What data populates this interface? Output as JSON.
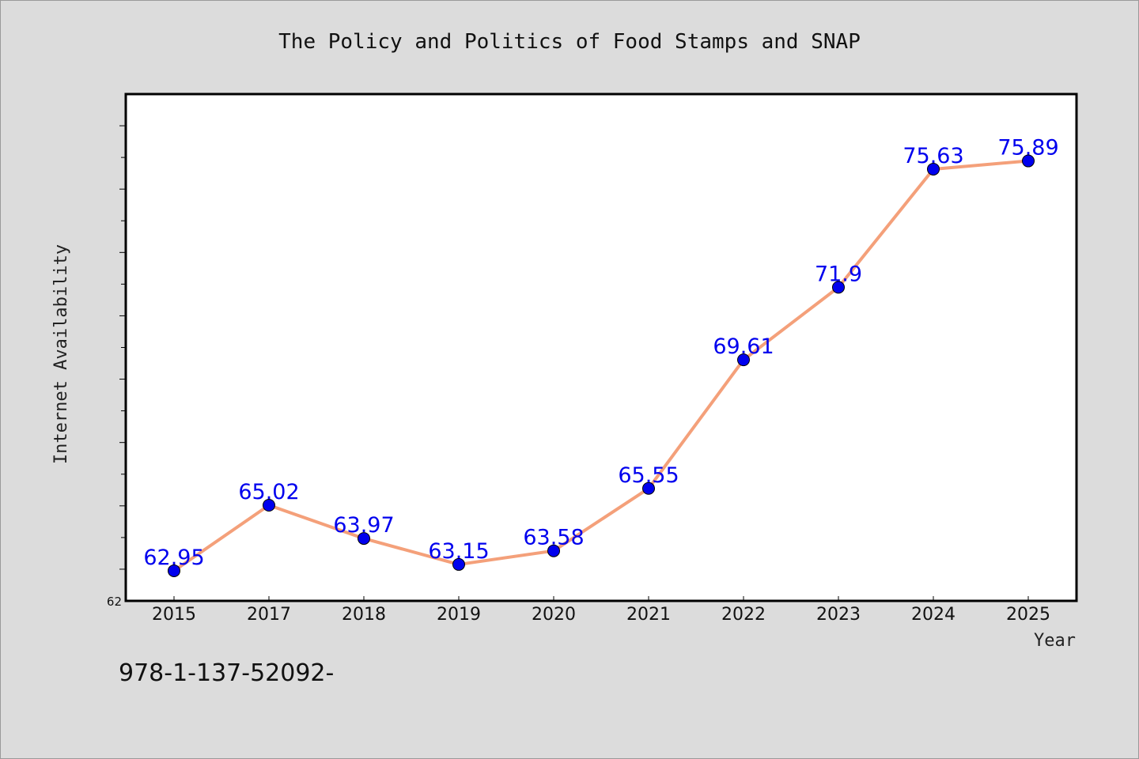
{
  "chart_data": {
    "type": "line",
    "title": "The Policy and Politics of Food Stamps and SNAP",
    "xlabel": "Year",
    "ylabel": "Internet Availability",
    "categories": [
      "2015",
      "2017",
      "2018",
      "2019",
      "2020",
      "2021",
      "2022",
      "2023",
      "2024",
      "2025"
    ],
    "series": [
      {
        "values": [
          62.95,
          65.02,
          63.97,
          63.15,
          63.58,
          65.55,
          69.61,
          71.9,
          75.63,
          75.89
        ],
        "labels": [
          "62.95",
          "65.02",
          "63.97",
          "63.15",
          "63.58",
          "65.55",
          "69.61",
          "71.9",
          "75.63",
          "75.89"
        ],
        "color": "#f4a07a",
        "marker_color": "#0000ee"
      }
    ],
    "ylim": [
      62,
      78
    ],
    "y_tick_step": 1,
    "y_tick_labels": [
      "62"
    ],
    "grid": false,
    "legend": "none"
  },
  "footer": {
    "text": "978-1-137-52092-"
  }
}
